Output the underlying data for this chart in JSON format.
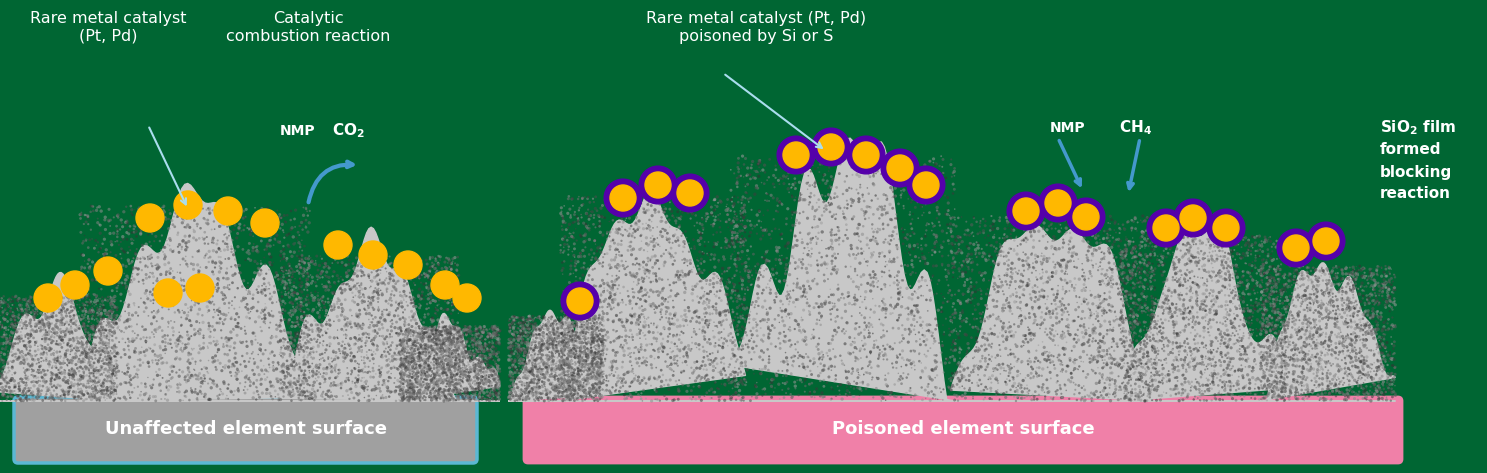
{
  "bg_color": "#006633",
  "fig_width": 14.87,
  "fig_height": 4.73,
  "left_panel": {
    "title_line1": "Rare metal catalyst",
    "title_line2": "(Pt, Pd)",
    "reaction_title_line1": "Catalytic",
    "reaction_title_line2": "combustion reaction",
    "nmp_label": "NMP",
    "co2_label": "CO₂",
    "base_label": "Unaffected element surface",
    "base_color": "#A0A0A0",
    "base_border": "#5BB8D4"
  },
  "right_panel": {
    "title_line1": "Rare metal catalyst (Pt, Pd)",
    "title_line2": "poisoned by Si or S",
    "nmp_label": "NMP",
    "ch4_label": "CH₄",
    "sio2_line1": "SiO₂ film",
    "sio2_line2": "formed",
    "sio2_line3": "blocking",
    "sio2_line4": "reaction",
    "base_label": "Poisoned element surface",
    "base_color": "#F080A8",
    "base_border": "#F080A8"
  },
  "catalyst_color": "#FFB800",
  "catalyst_ring_color": "#5500AA",
  "arrow_color": "#4499CC",
  "text_color": "#FFFFFF"
}
